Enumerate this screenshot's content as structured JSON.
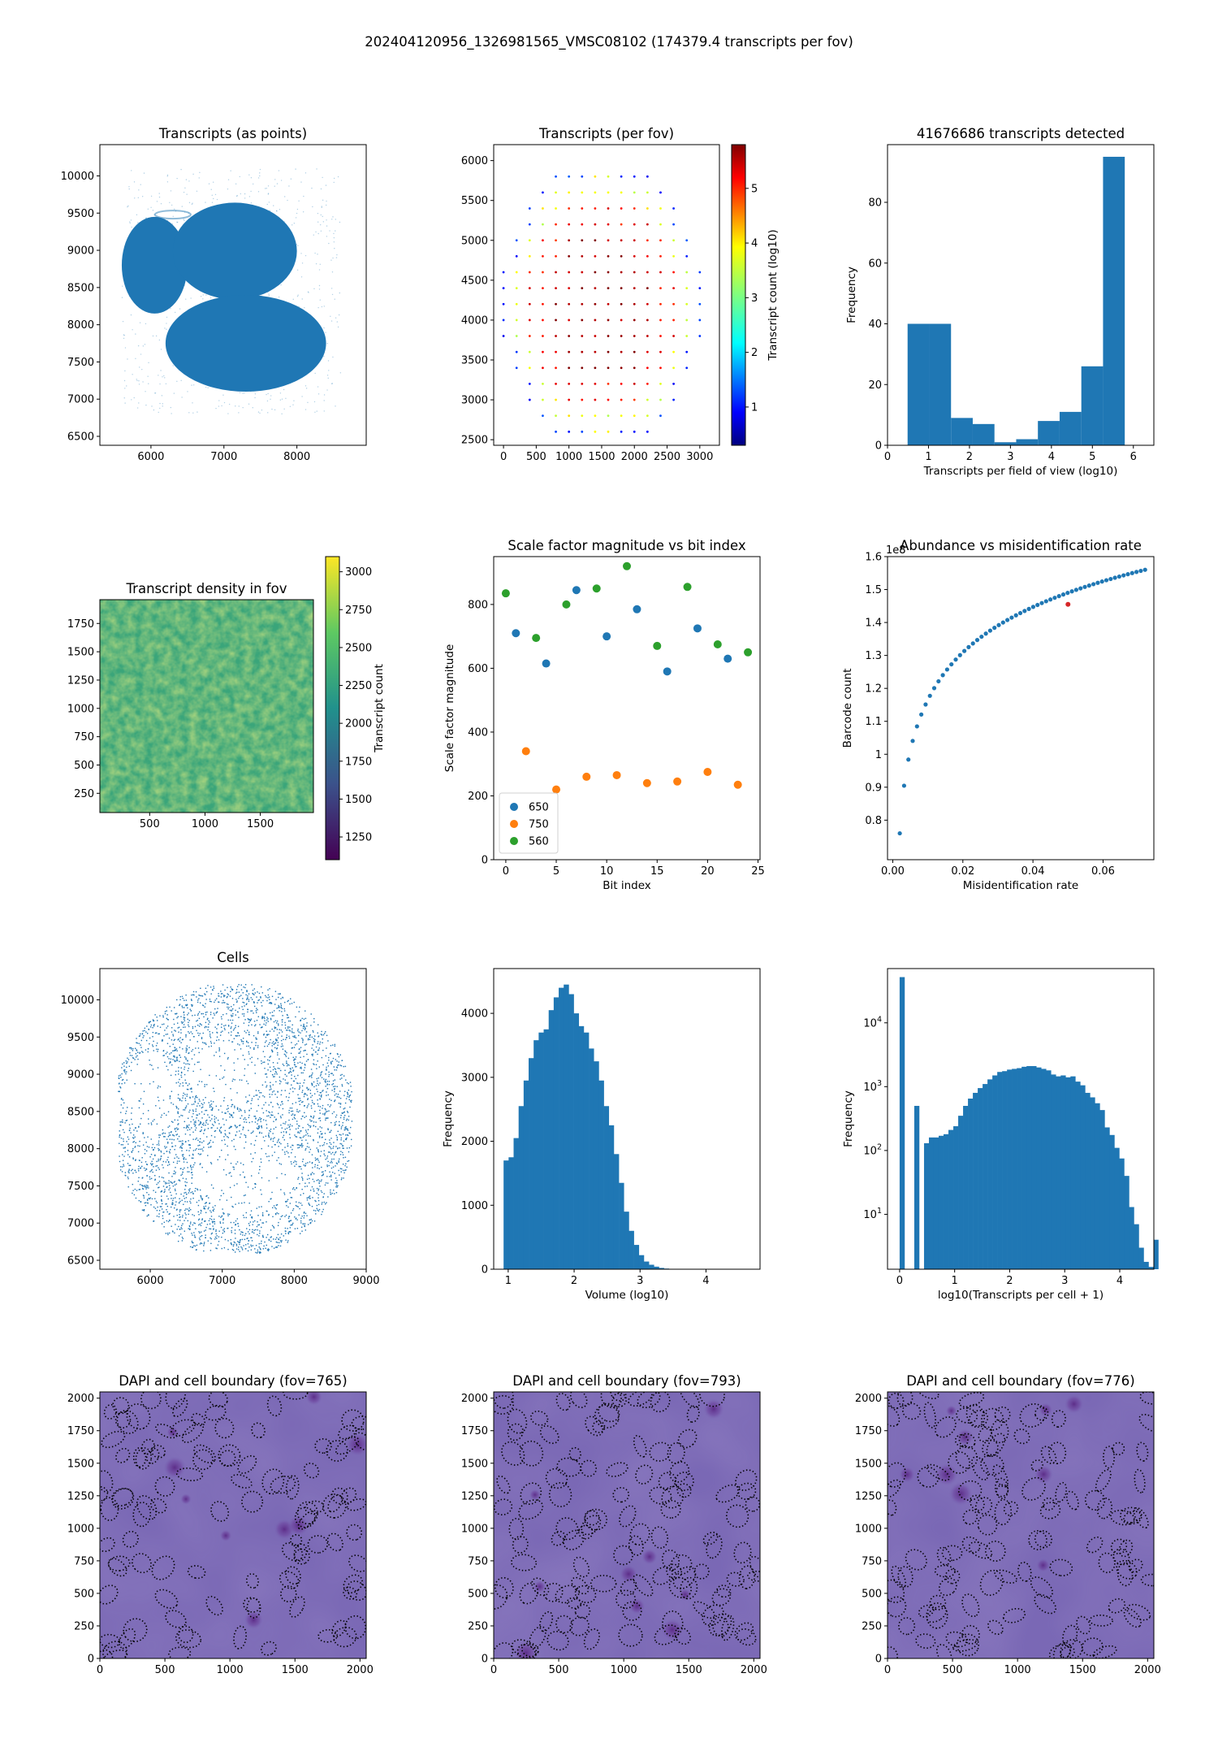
{
  "figure": {
    "suptitle": "202404120956_1326981565_VMSC08102 (174379.4 transcripts per fov)",
    "colors": {
      "tab_blue": "#1f77b4",
      "tab_orange": "#ff7f0e",
      "tab_green": "#2ca02c",
      "dapi": "#7a68b5",
      "boundary": "#000000"
    }
  },
  "chart_data": [
    {
      "id": "p1",
      "type": "scatter",
      "title": "Transcripts (as points)",
      "xlim": [
        5300,
        8950
      ],
      "ylim": [
        6380,
        10420
      ],
      "xticks": [
        6000,
        7000,
        8000
      ],
      "yticks": [
        6500,
        7000,
        7500,
        8000,
        8500,
        9000,
        9500,
        10000
      ],
      "regions": [
        {
          "name": "left lobe",
          "center": [
            6050,
            8800
          ],
          "radius": [
            450,
            650
          ]
        },
        {
          "name": "upper right lobe",
          "center": [
            7150,
            8990
          ],
          "radius": [
            850,
            650
          ]
        },
        {
          "name": "lower lobe",
          "center": [
            7300,
            7750
          ],
          "radius": [
            1100,
            650
          ]
        }
      ]
    },
    {
      "id": "p2",
      "type": "scatter",
      "title": "Transcripts (per fov)",
      "xlim": [
        -150,
        3300
      ],
      "ylim": [
        2430,
        6200
      ],
      "xticks": [
        0,
        500,
        1000,
        1500,
        2000,
        2500,
        3000
      ],
      "yticks": [
        2500,
        3000,
        3500,
        4000,
        4500,
        5000,
        5500,
        6000
      ],
      "colorbar": {
        "label": "Transcript count (log10)",
        "range": [
          0.3,
          5.8
        ],
        "ticks": [
          1,
          2,
          3,
          4,
          5
        ],
        "colormap": "jet"
      },
      "grid_spacing": 200
    },
    {
      "id": "p3",
      "type": "bar",
      "title": "41676686 transcripts detected",
      "xlabel": "Transcripts per field of view (log10)",
      "ylabel": "Frequency",
      "xlim": [
        0,
        6.5
      ],
      "ylim": [
        0,
        99
      ],
      "xticks": [
        0,
        1,
        2,
        3,
        4,
        5,
        6
      ],
      "yticks": [
        0,
        20,
        40,
        60,
        80
      ],
      "bin_edges": [
        0.49,
        1.02,
        1.55,
        2.08,
        2.61,
        3.14,
        3.67,
        4.2,
        4.73,
        5.26,
        5.79
      ],
      "values": [
        40,
        40,
        9,
        7,
        1,
        2,
        8,
        11,
        26,
        95
      ]
    },
    {
      "id": "p4",
      "type": "heatmap",
      "title": "Transcript density in fov",
      "xlim": [
        50,
        1980
      ],
      "ylim": [
        80,
        1960
      ],
      "xticks": [
        500,
        1000,
        1500
      ],
      "yticks": [
        250,
        500,
        750,
        1000,
        1250,
        1500,
        1750
      ],
      "colorbar": {
        "label": "Transcript count",
        "range": [
          1100,
          3100
        ],
        "ticks": [
          1250,
          1500,
          1750,
          2000,
          2250,
          2500,
          2750,
          3000
        ],
        "colormap": "viridis"
      }
    },
    {
      "id": "p5",
      "type": "scatter",
      "title": "Scale factor magnitude vs bit index",
      "xlabel": "Bit index",
      "ylabel": "Scale factor magnitude",
      "xlim": [
        -1.2,
        25.2
      ],
      "ylim": [
        0,
        950
      ],
      "xticks": [
        0,
        5,
        10,
        15,
        20,
        25
      ],
      "yticks": [
        0,
        200,
        400,
        600,
        800
      ],
      "legend_position": "lower-left",
      "series": [
        {
          "name": "650",
          "color": "#1f77b4",
          "x": [
            1,
            4,
            7,
            10,
            13,
            16,
            19,
            22
          ],
          "y": [
            710,
            615,
            845,
            700,
            785,
            590,
            725,
            630
          ]
        },
        {
          "name": "750",
          "color": "#ff7f0e",
          "x": [
            2,
            5,
            8,
            11,
            14,
            17,
            20,
            23
          ],
          "y": [
            340,
            220,
            260,
            265,
            240,
            245,
            275,
            235
          ]
        },
        {
          "name": "560",
          "color": "#2ca02c",
          "x": [
            0,
            3,
            6,
            9,
            12,
            15,
            18,
            21,
            24
          ],
          "y": [
            835,
            695,
            800,
            850,
            920,
            670,
            855,
            675,
            650
          ]
        }
      ]
    },
    {
      "id": "p6",
      "type": "scatter",
      "title": "Abundance vs misidentification rate",
      "xlabel": "Misidentification rate",
      "ylabel": "Barcode count",
      "offset_label": "1e8",
      "xlim": [
        -0.0015,
        0.0745
      ],
      "ylim": [
        0.68,
        1.6
      ],
      "xticks": [
        0.0,
        0.02,
        0.04,
        0.06
      ],
      "xticklabels": [
        "0.00",
        "0.02",
        "0.04",
        "0.06"
      ],
      "yticks": [
        0.8,
        0.9,
        1.0,
        1.1,
        1.2,
        1.3,
        1.4,
        1.5,
        1.6
      ],
      "curve": {
        "x_start": 0.002,
        "x_end": 0.072,
        "n_points": 58,
        "y_start": 0.76,
        "y_end": 1.56
      },
      "highlight": {
        "x": 0.05,
        "y": 1.455,
        "color": "#d62728"
      }
    },
    {
      "id": "p7",
      "type": "scatter",
      "title": "Cells",
      "xlim": [
        5300,
        9000
      ],
      "ylim": [
        6380,
        10420
      ],
      "xticks": [
        6000,
        7000,
        8000,
        9000
      ],
      "yticks": [
        6500,
        7000,
        7500,
        8000,
        8500,
        9000,
        9500,
        10000
      ]
    },
    {
      "id": "p8",
      "type": "bar",
      "title": "",
      "xlabel": "Volume (log10)",
      "ylabel": "Frequency",
      "xlim": [
        0.78,
        4.82
      ],
      "ylim": [
        0,
        4700
      ],
      "xticks": [
        1,
        2,
        3,
        4
      ],
      "yticks": [
        0,
        1000,
        2000,
        3000,
        4000
      ],
      "bin_start": 0.93,
      "bin_width": 0.076,
      "values": [
        1700,
        1750,
        2050,
        2550,
        2950,
        3300,
        3580,
        3700,
        3750,
        4050,
        4250,
        4400,
        4450,
        4300,
        4000,
        3800,
        3700,
        3450,
        3250,
        2950,
        2550,
        2250,
        1800,
        1350,
        900,
        600,
        380,
        220,
        120,
        70,
        40,
        20,
        10,
        5,
        2,
        1,
        1,
        0,
        0,
        0,
        0,
        0,
        1,
        0,
        0,
        0,
        1
      ]
    },
    {
      "id": "p9",
      "type": "bar",
      "title": "",
      "yscale": "log",
      "xlabel": "log10(Transcripts per cell + 1)",
      "ylabel": "Frequency",
      "xlim": [
        -0.22,
        4.62
      ],
      "ylim_log10": [
        0.14,
        4.85
      ],
      "xticks": [
        0,
        1,
        2,
        3,
        4
      ],
      "yticks": [
        1,
        2,
        3,
        4
      ],
      "bin_start": 0,
      "bin_width": 0.0887,
      "values": [
        52000,
        0,
        0,
        500,
        0,
        130,
        160,
        160,
        170,
        180,
        210,
        240,
        350,
        500,
        650,
        800,
        950,
        1100,
        1300,
        1500,
        1700,
        1750,
        1850,
        1900,
        1950,
        2050,
        2100,
        2100,
        2000,
        1900,
        1800,
        1550,
        1450,
        1500,
        1400,
        1450,
        1200,
        1050,
        800,
        680,
        550,
        430,
        230,
        175,
        110,
        75,
        40,
        13,
        7,
        3,
        1.8,
        1.5,
        4
      ]
    },
    {
      "id": "p10",
      "type": "image",
      "title": "DAPI and cell boundary (fov=765)",
      "xlim": [
        0,
        2048
      ],
      "ylim": [
        0,
        2048
      ],
      "xticks": [
        0,
        500,
        1000,
        1500,
        2000
      ],
      "yticks": [
        0,
        250,
        500,
        750,
        1000,
        1250,
        1500,
        1750,
        2000
      ]
    },
    {
      "id": "p11",
      "type": "image",
      "title": "DAPI and cell boundary (fov=793)",
      "xlim": [
        0,
        2048
      ],
      "ylim": [
        0,
        2048
      ],
      "xticks": [
        0,
        500,
        1000,
        1500,
        2000
      ],
      "yticks": [
        0,
        250,
        500,
        750,
        1000,
        1250,
        1500,
        1750,
        2000
      ]
    },
    {
      "id": "p12",
      "type": "image",
      "title": "DAPI and cell boundary (fov=776)",
      "xlim": [
        0,
        2048
      ],
      "ylim": [
        0,
        2048
      ],
      "xticks": [
        0,
        500,
        1000,
        1500,
        2000
      ],
      "yticks": [
        0,
        250,
        500,
        750,
        1000,
        1250,
        1500,
        1750,
        2000
      ]
    }
  ]
}
